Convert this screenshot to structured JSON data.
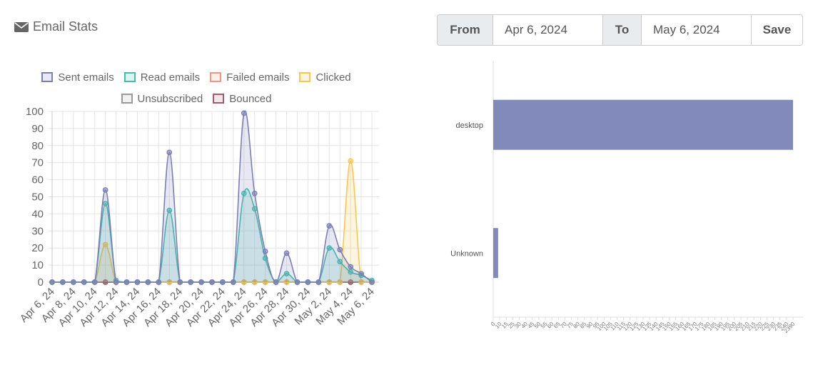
{
  "header": {
    "title": "Email Stats",
    "icon": "envelope-icon"
  },
  "daterange": {
    "from_label": "From",
    "from_value": "Apr 6, 2024",
    "to_label": "To",
    "to_value": "May 6, 2024",
    "save_label": "Save"
  },
  "chart_data": [
    {
      "type": "line",
      "title": "",
      "legend_position": "top",
      "grid": true,
      "ylim": [
        0,
        100
      ],
      "y_ticks": [
        0,
        10,
        20,
        30,
        40,
        50,
        60,
        70,
        80,
        90,
        100
      ],
      "x_tick_labels": [
        "Apr 6, 24",
        "Apr 8, 24",
        "Apr 10, 24",
        "Apr 12, 24",
        "Apr 14, 24",
        "Apr 16, 24",
        "Apr 18, 24",
        "Apr 20, 24",
        "Apr 22, 24",
        "Apr 24, 24",
        "Apr 26, 24",
        "Apr 28, 24",
        "Apr 30, 24",
        "May 2, 24",
        "May 4, 24",
        "May 6, 24"
      ],
      "x": [
        "Apr 6, 24",
        "Apr 7, 24",
        "Apr 8, 24",
        "Apr 9, 24",
        "Apr 10, 24",
        "Apr 11, 24",
        "Apr 12, 24",
        "Apr 13, 24",
        "Apr 14, 24",
        "Apr 15, 24",
        "Apr 16, 24",
        "Apr 17, 24",
        "Apr 18, 24",
        "Apr 19, 24",
        "Apr 20, 24",
        "Apr 21, 24",
        "Apr 22, 24",
        "Apr 23, 24",
        "Apr 24, 24",
        "Apr 25, 24",
        "Apr 26, 24",
        "Apr 27, 24",
        "Apr 28, 24",
        "Apr 29, 24",
        "Apr 30, 24",
        "May 1, 24",
        "May 2, 24",
        "May 3, 24",
        "May 4, 24",
        "May 5, 24",
        "May 6, 24"
      ],
      "series": [
        {
          "name": "Sent emails",
          "color": "#7b7fb7",
          "fill": "rgba(123,127,183,0.18)",
          "values": [
            0,
            0,
            0,
            0,
            0,
            54,
            0,
            0,
            0,
            0,
            0,
            76,
            0,
            0,
            0,
            0,
            0,
            0,
            99,
            52,
            18,
            0,
            17,
            0,
            0,
            0,
            33,
            19,
            9,
            5,
            0
          ]
        },
        {
          "name": "Read emails",
          "color": "#3fbfae",
          "fill": "rgba(63,191,174,0.18)",
          "values": [
            0,
            0,
            0,
            0,
            0,
            46,
            1,
            0,
            0,
            0,
            0,
            42,
            0,
            0,
            0,
            0,
            0,
            0,
            52,
            43,
            14,
            0,
            5,
            0,
            0,
            0,
            20,
            12,
            6,
            4,
            1
          ]
        },
        {
          "name": "Failed emails",
          "color": "#f5967f",
          "fill": "rgba(245,150,127,0.15)",
          "values": [
            0,
            0,
            0,
            0,
            0,
            0,
            0,
            0,
            0,
            0,
            0,
            0,
            0,
            0,
            0,
            0,
            0,
            0,
            0,
            0,
            0,
            0,
            0,
            0,
            0,
            0,
            0,
            0,
            0,
            0,
            0
          ]
        },
        {
          "name": "Clicked",
          "color": "#fcc64e",
          "fill": "rgba(252,198,78,0.18)",
          "values": [
            0,
            0,
            0,
            0,
            0,
            22,
            0,
            0,
            0,
            0,
            0,
            0,
            0,
            0,
            0,
            0,
            0,
            0,
            0,
            0,
            0,
            0,
            0,
            0,
            0,
            0,
            0,
            0,
            71,
            0,
            0
          ]
        },
        {
          "name": "Unsubscribed",
          "color": "#9a9a9a",
          "fill": "rgba(154,154,154,0.15)",
          "values": [
            0,
            0,
            0,
            0,
            0,
            0,
            0,
            0,
            0,
            0,
            0,
            0,
            0,
            0,
            0,
            0,
            0,
            0,
            0,
            0,
            0,
            0,
            0,
            0,
            0,
            0,
            0,
            0,
            0,
            0,
            0
          ]
        },
        {
          "name": "Bounced",
          "color": "#a05c6a",
          "fill": "rgba(160,92,106,0.15)",
          "values": [
            0,
            0,
            0,
            0,
            0,
            0,
            0,
            0,
            0,
            0,
            0,
            0,
            0,
            0,
            0,
            0,
            0,
            0,
            0,
            0,
            0,
            0,
            0,
            0,
            0,
            0,
            0,
            0,
            0,
            0,
            0
          ]
        }
      ]
    },
    {
      "type": "bar",
      "orientation": "horizontal",
      "categories": [
        "desktop",
        "Unknown"
      ],
      "values": [
        2390,
        39
      ],
      "color": "#8289bb",
      "xlim": [
        0,
        2390
      ],
      "x_ticks": [
        0,
        10,
        15,
        25,
        30,
        40,
        45,
        50,
        55,
        60,
        65,
        70,
        75,
        80,
        85,
        90,
        95,
        100,
        105,
        110,
        115,
        120,
        125,
        130,
        135,
        140,
        145,
        150,
        155,
        160,
        165,
        170,
        175,
        180,
        185,
        190,
        195,
        200,
        205,
        210,
        215,
        220,
        225,
        230,
        235,
        240,
        2390
      ],
      "grid": false
    }
  ]
}
